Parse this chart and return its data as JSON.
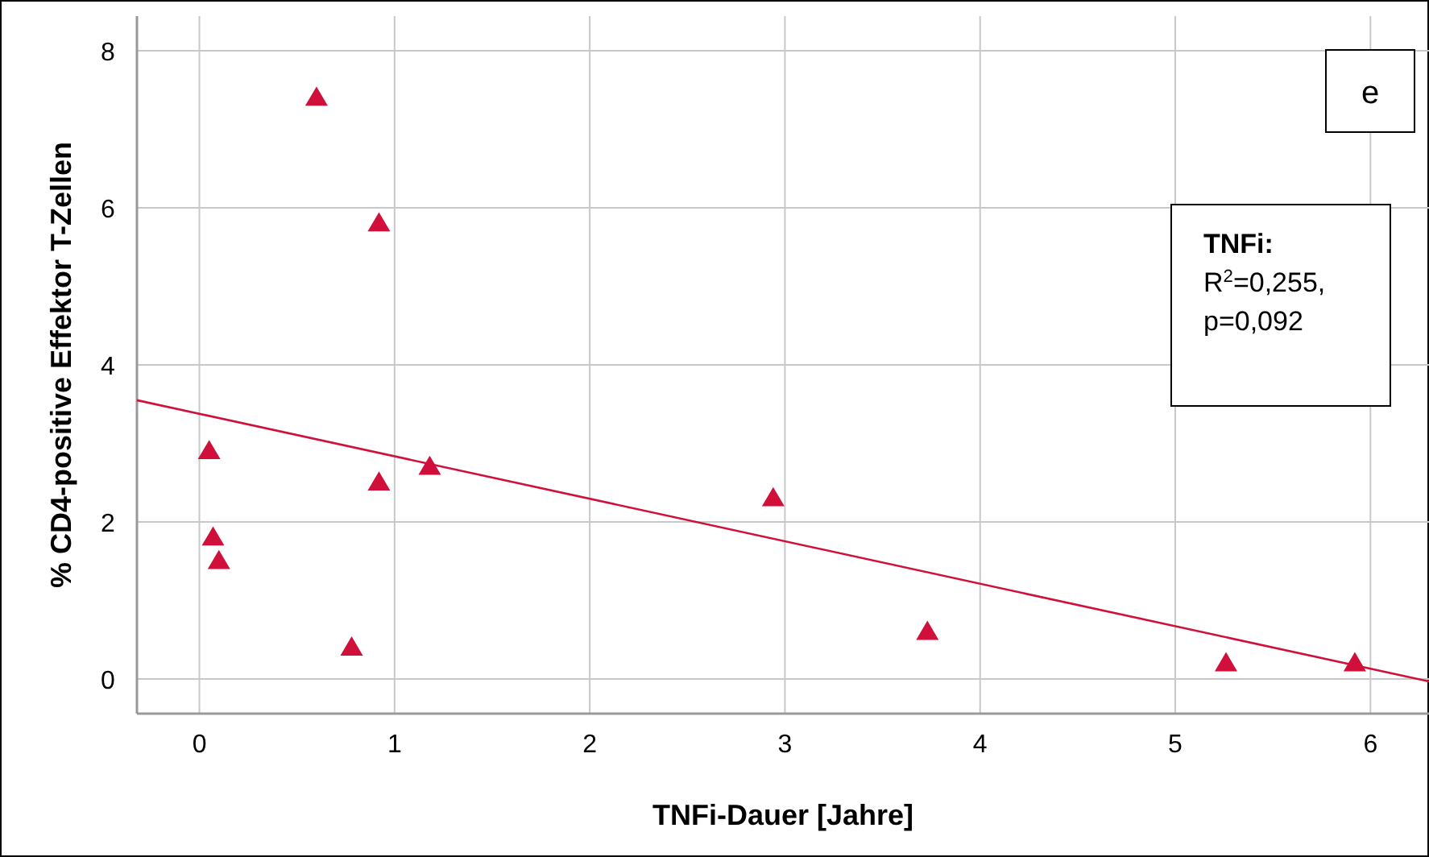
{
  "chart_data": {
    "type": "scatter",
    "xlabel": "TNFi-Dauer [Jahre]",
    "ylabel": "% CD4-positive Effektor T-Zellen",
    "xlim": [
      -0.32,
      6.3
    ],
    "xticks": [
      0,
      1,
      2,
      3,
      4,
      5,
      6
    ],
    "ylim": [
      -0.44,
      8.44
    ],
    "yticks": [
      0,
      2,
      4,
      6,
      8
    ],
    "grid": true,
    "series": [
      {
        "marker": "triangle",
        "color": "#d0103a",
        "x": [
          0.05,
          0.07,
          0.1,
          0.6,
          0.92,
          0.78,
          0.92,
          1.18,
          2.94,
          3.73,
          5.26,
          5.92
        ],
        "values": [
          2.9,
          1.8,
          1.5,
          7.4,
          5.8,
          0.4,
          2.5,
          2.7,
          2.3,
          0.6,
          0.2,
          0.2
        ]
      },
      {
        "type": "line",
        "color": "#d0103a",
        "x": [
          -0.32,
          6.3
        ],
        "values": [
          3.55,
          -0.03
        ]
      }
    ],
    "annotations": [
      "e",
      "TNFi:",
      "R$^{2}$=0,255,",
      "p=0,092"
    ]
  }
}
